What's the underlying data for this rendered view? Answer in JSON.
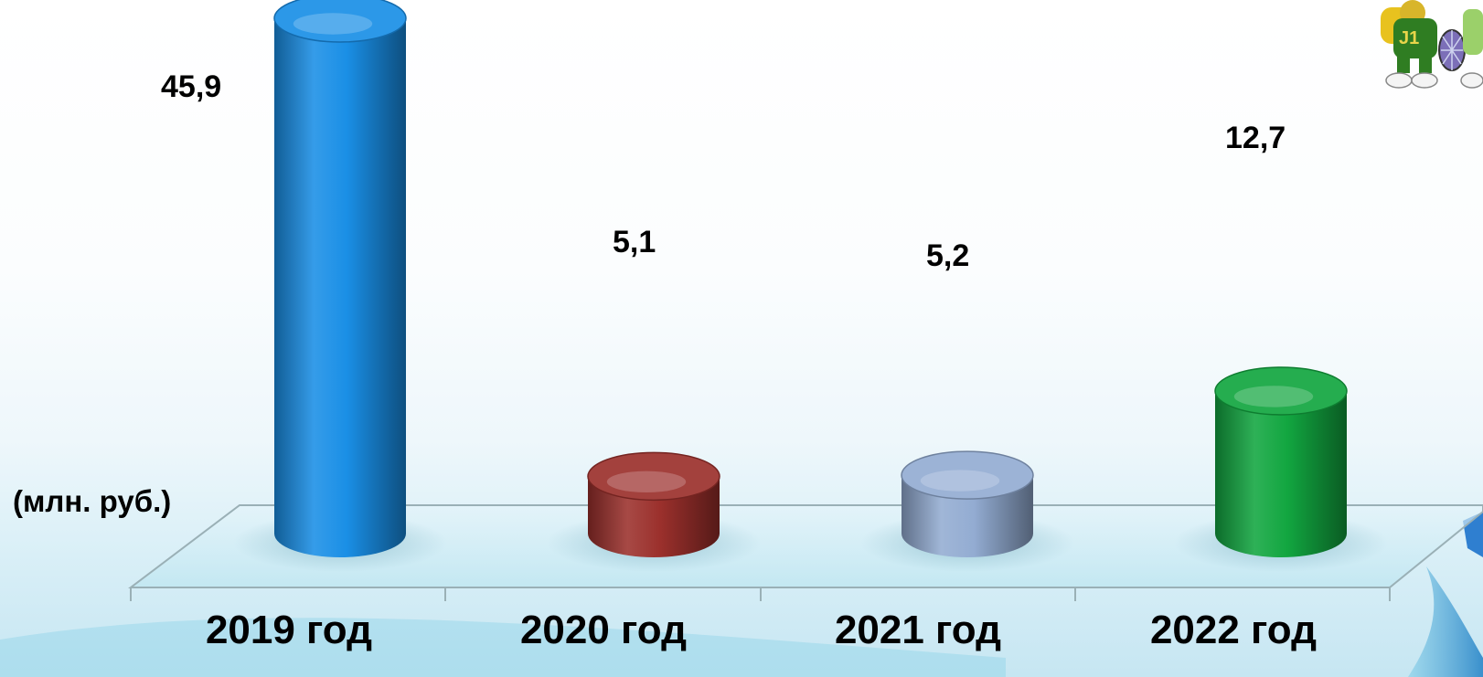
{
  "chart_data": {
    "type": "bar",
    "categories": [
      "2019 год",
      "2020 год",
      "2021 год",
      "2022 год"
    ],
    "values": [
      45.9,
      5.1,
      5.2,
      12.7
    ],
    "value_labels": [
      "45,9",
      "5,1",
      "5,2",
      "12,7"
    ],
    "unit_label": "(млн. руб.)",
    "colors": [
      "#1a8fe6",
      "#9b302c",
      "#93acd2",
      "#12a640"
    ],
    "style": "3d-cylinder",
    "grid": false,
    "legend": "none"
  },
  "decor": {
    "mascot_icon": "tennis-mascot-icon"
  }
}
